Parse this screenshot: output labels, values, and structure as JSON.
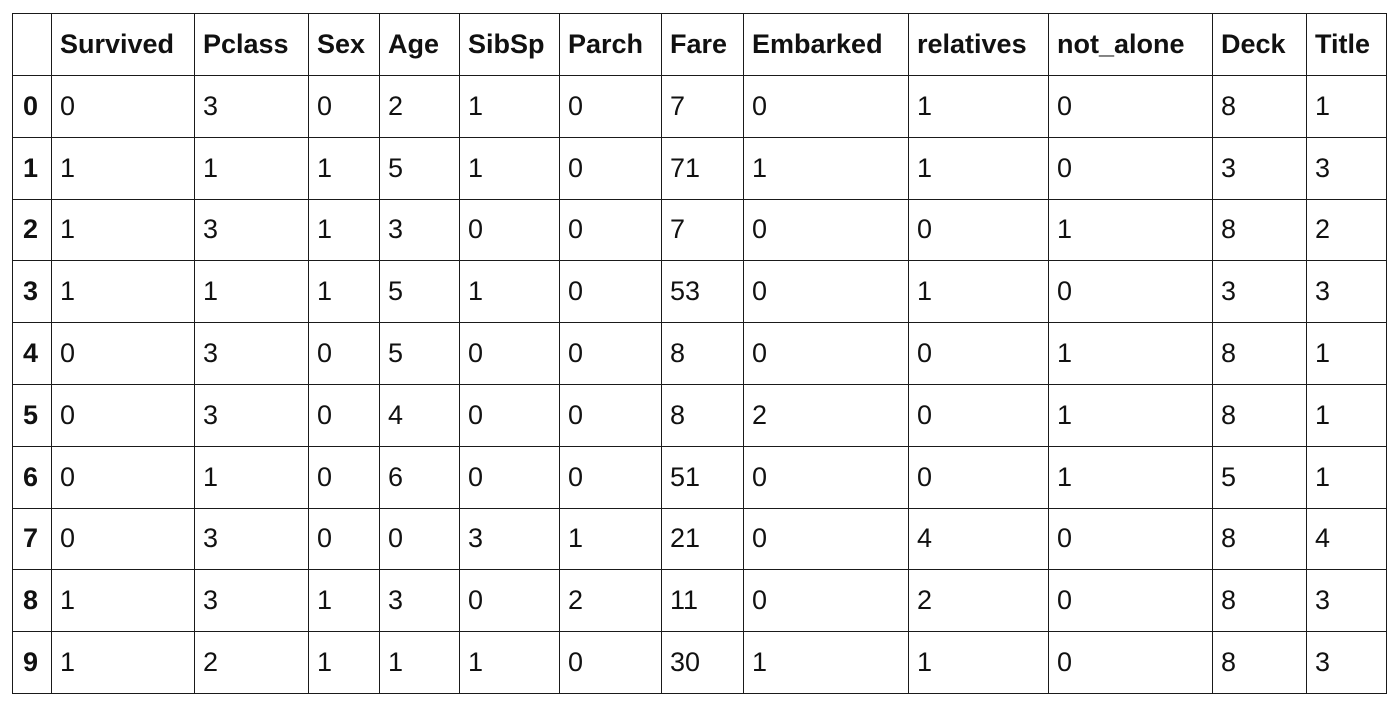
{
  "table": {
    "index_header": "",
    "columns": [
      "Survived",
      "Pclass",
      "Sex",
      "Age",
      "SibSp",
      "Parch",
      "Fare",
      "Embarked",
      "relatives",
      "not_alone",
      "Deck",
      "Title"
    ],
    "rows": [
      {
        "index": "0",
        "cells": [
          "0",
          "3",
          "0",
          "2",
          "1",
          "0",
          "7",
          "0",
          "1",
          "0",
          "8",
          "1"
        ]
      },
      {
        "index": "1",
        "cells": [
          "1",
          "1",
          "1",
          "5",
          "1",
          "0",
          "71",
          "1",
          "1",
          "0",
          "3",
          "3"
        ]
      },
      {
        "index": "2",
        "cells": [
          "1",
          "3",
          "1",
          "3",
          "0",
          "0",
          "7",
          "0",
          "0",
          "1",
          "8",
          "2"
        ]
      },
      {
        "index": "3",
        "cells": [
          "1",
          "1",
          "1",
          "5",
          "1",
          "0",
          "53",
          "0",
          "1",
          "0",
          "3",
          "3"
        ]
      },
      {
        "index": "4",
        "cells": [
          "0",
          "3",
          "0",
          "5",
          "0",
          "0",
          "8",
          "0",
          "0",
          "1",
          "8",
          "1"
        ]
      },
      {
        "index": "5",
        "cells": [
          "0",
          "3",
          "0",
          "4",
          "0",
          "0",
          "8",
          "2",
          "0",
          "1",
          "8",
          "1"
        ]
      },
      {
        "index": "6",
        "cells": [
          "0",
          "1",
          "0",
          "6",
          "0",
          "0",
          "51",
          "0",
          "0",
          "1",
          "5",
          "1"
        ]
      },
      {
        "index": "7",
        "cells": [
          "0",
          "3",
          "0",
          "0",
          "3",
          "1",
          "21",
          "0",
          "4",
          "0",
          "8",
          "4"
        ]
      },
      {
        "index": "8",
        "cells": [
          "1",
          "3",
          "1",
          "3",
          "0",
          "2",
          "11",
          "0",
          "2",
          "0",
          "8",
          "3"
        ]
      },
      {
        "index": "9",
        "cells": [
          "1",
          "2",
          "1",
          "1",
          "1",
          "0",
          "30",
          "1",
          "1",
          "0",
          "8",
          "3"
        ]
      }
    ]
  }
}
